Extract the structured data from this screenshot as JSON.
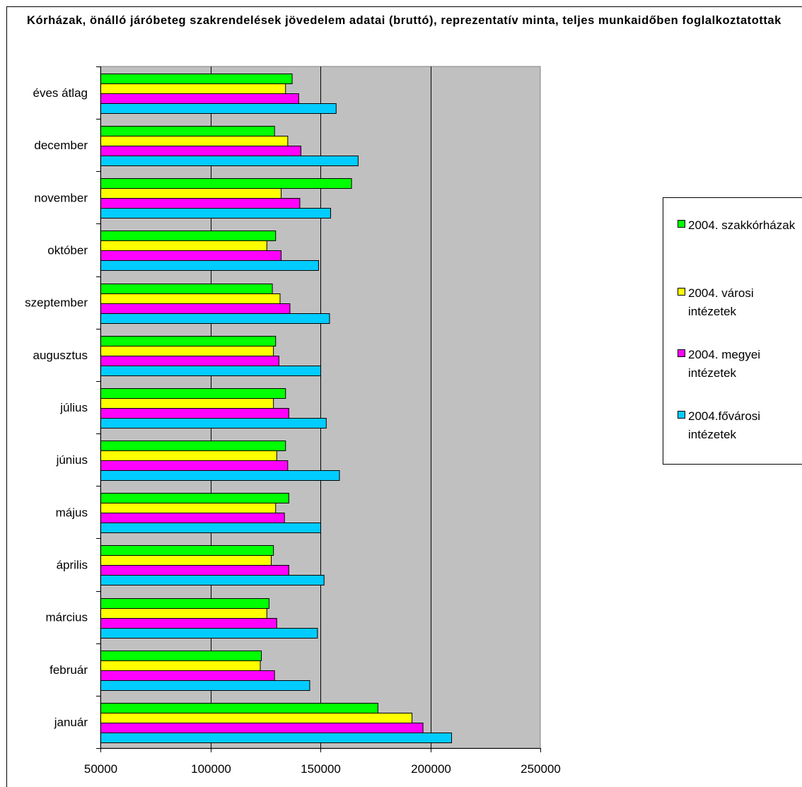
{
  "chart_data": {
    "type": "bar",
    "orientation": "horizontal",
    "title": "Kórházak, önálló járóbeteg szakrendelések jövedelem adatai (bruttó), reprezentatív minta, teljes munkaidőben foglalkoztatottak",
    "categories": [
      "éves átlag",
      "december",
      "november",
      "október",
      "szeptember",
      "augusztus",
      "július",
      "június",
      "május",
      "április",
      "március",
      "február",
      "január"
    ],
    "series": [
      {
        "name": "2004. szakkórházak",
        "color": "#00ff00",
        "values": [
          137000,
          129000,
          164000,
          129500,
          128000,
          129500,
          134000,
          134000,
          135500,
          128500,
          126500,
          123000,
          176000
        ]
      },
      {
        "name": "2004. városi intézetek",
        "color": "#ffff00",
        "values": [
          134000,
          135000,
          132000,
          125500,
          131500,
          128500,
          128500,
          130000,
          129500,
          127500,
          125500,
          122500,
          191500
        ]
      },
      {
        "name": "2004. megyei intézetek",
        "color": "#ff00ff",
        "values": [
          140000,
          141000,
          140500,
          132000,
          136000,
          131000,
          135500,
          135000,
          133500,
          135500,
          130000,
          129000,
          196500
        ]
      },
      {
        "name": "2004.fővárosi intézetek",
        "color": "#00ccff",
        "values": [
          157000,
          167000,
          154500,
          149000,
          154000,
          150000,
          152500,
          158500,
          150000,
          151500,
          148500,
          145000,
          209500
        ]
      }
    ],
    "xlim": [
      50000,
      250000
    ],
    "xticks": [
      50000,
      100000,
      150000,
      200000,
      250000
    ],
    "xtick_labels": [
      "50000",
      "100000",
      "150000",
      "200000",
      "250000"
    ],
    "grid": true,
    "plot_background": "#c0c0c0",
    "legend_position": "right"
  }
}
